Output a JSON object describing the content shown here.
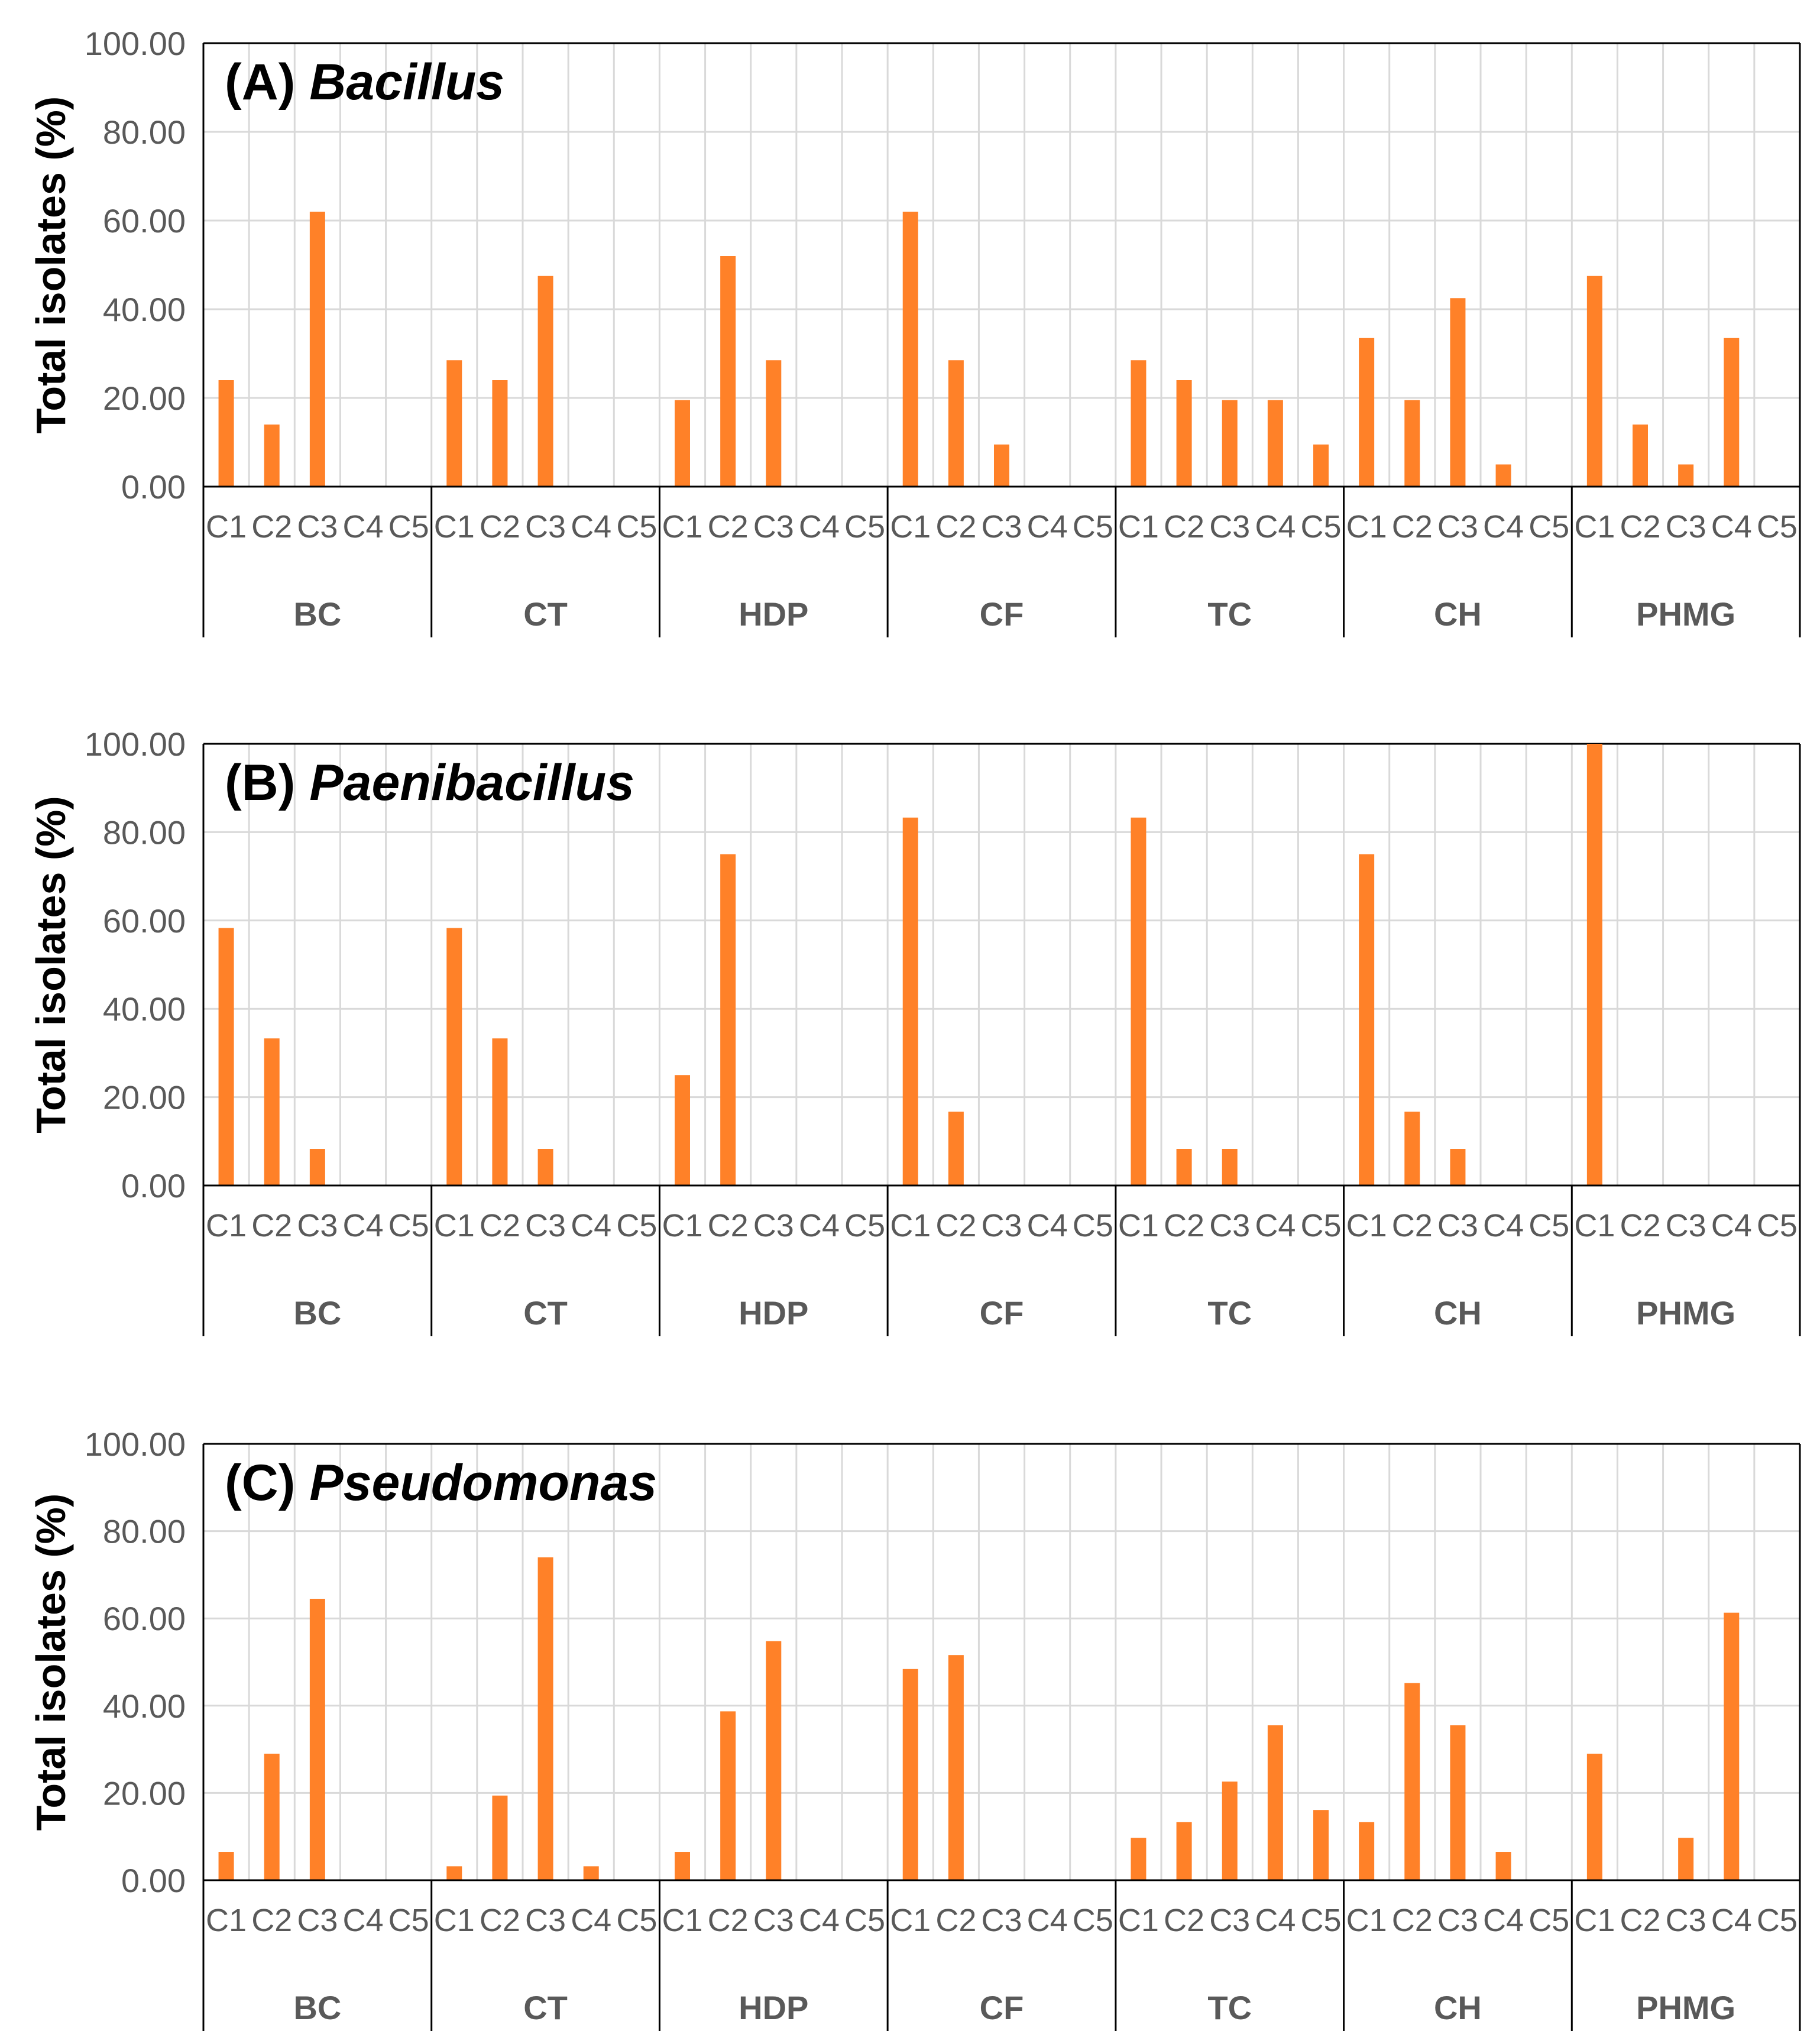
{
  "colors": {
    "bar": "#FF8128",
    "grid": "#D9D9D9",
    "axis": "#595959",
    "frame": "#000000"
  },
  "chart_data": [
    {
      "type": "bar",
      "title_prefix": "(A)",
      "title_genus": "Bacillus",
      "ylabel": "Total isolates (%)",
      "ylim": [
        0,
        100
      ],
      "yticks": [
        "0.00",
        "20.00",
        "40.00",
        "60.00",
        "80.00",
        "100.00"
      ],
      "groups": [
        "BC",
        "CT",
        "HDP",
        "CF",
        "TC",
        "CH",
        "PHMG"
      ],
      "categories": [
        "C1",
        "C2",
        "C3",
        "C4",
        "C5"
      ],
      "values": [
        [
          24.0,
          14.0,
          62.0,
          0,
          0
        ],
        [
          28.5,
          24.0,
          47.5,
          0,
          0
        ],
        [
          19.5,
          52.0,
          28.5,
          0,
          0
        ],
        [
          62.0,
          28.5,
          9.5,
          0,
          0
        ],
        [
          28.5,
          24.0,
          19.5,
          19.5,
          9.5
        ],
        [
          33.5,
          19.5,
          42.5,
          5.0,
          0
        ],
        [
          47.5,
          14.0,
          5.0,
          33.5,
          0
        ]
      ]
    },
    {
      "type": "bar",
      "title_prefix": "(B)",
      "title_genus": "Paenibacillus",
      "ylabel": "Total isolates (%)",
      "ylim": [
        0,
        100
      ],
      "yticks": [
        "0.00",
        "20.00",
        "40.00",
        "60.00",
        "80.00",
        "100.00"
      ],
      "groups": [
        "BC",
        "CT",
        "HDP",
        "CF",
        "TC",
        "CH",
        "PHMG"
      ],
      "categories": [
        "C1",
        "C2",
        "C3",
        "C4",
        "C5"
      ],
      "values": [
        [
          58.3,
          33.3,
          8.3,
          0,
          0
        ],
        [
          58.3,
          33.3,
          8.3,
          0,
          0
        ],
        [
          25.0,
          75.0,
          0,
          0,
          0
        ],
        [
          83.3,
          16.7,
          0,
          0,
          0
        ],
        [
          83.3,
          8.3,
          8.3,
          0,
          0
        ],
        [
          75.0,
          16.7,
          8.3,
          0,
          0
        ],
        [
          100.0,
          0,
          0,
          0,
          0
        ]
      ]
    },
    {
      "type": "bar",
      "title_prefix": "(C)",
      "title_genus": "Pseudomonas",
      "ylabel": "Total isolates (%)",
      "ylim": [
        0,
        100
      ],
      "yticks": [
        "0.00",
        "20.00",
        "40.00",
        "60.00",
        "80.00",
        "100.00"
      ],
      "groups": [
        "BC",
        "CT",
        "HDP",
        "CF",
        "TC",
        "CH",
        "PHMG"
      ],
      "categories": [
        "C1",
        "C2",
        "C3",
        "C4",
        "C5"
      ],
      "values": [
        [
          6.5,
          29.0,
          64.5,
          0,
          0
        ],
        [
          3.2,
          19.4,
          74.0,
          3.2,
          0
        ],
        [
          6.5,
          38.7,
          54.8,
          0,
          0
        ],
        [
          48.4,
          51.6,
          0,
          0,
          0
        ],
        [
          9.7,
          13.3,
          22.6,
          35.5,
          16.1
        ],
        [
          13.3,
          45.2,
          35.5,
          6.5,
          0
        ],
        [
          29.0,
          0,
          9.7,
          61.3,
          0
        ]
      ]
    }
  ]
}
